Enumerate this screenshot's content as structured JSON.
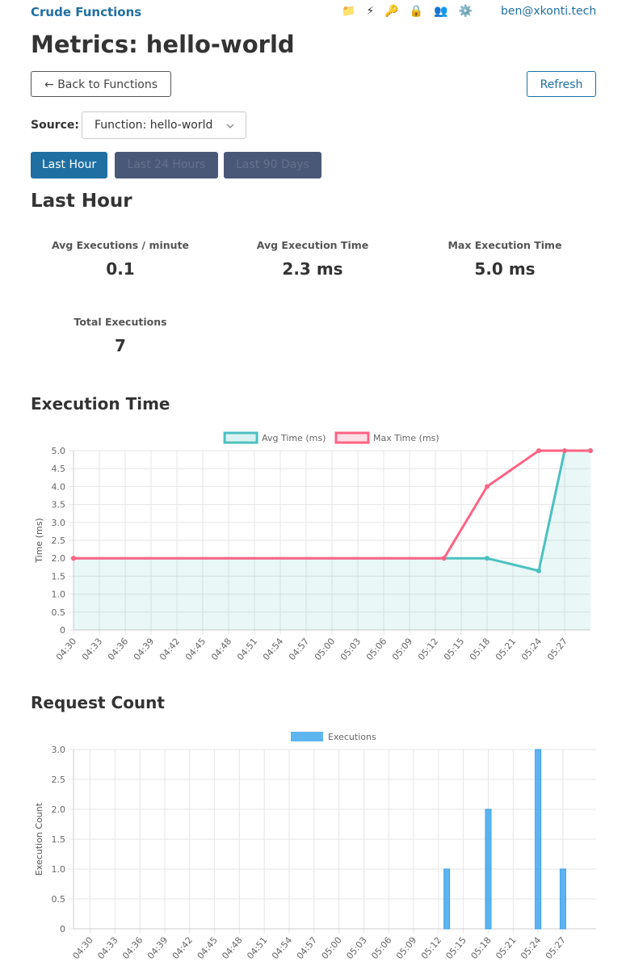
{
  "header": {
    "brand": "Crude Functions",
    "icons": [
      "📁",
      "⚡",
      "🔑",
      "🔒",
      "👥",
      "⚙️"
    ],
    "user": "ben@xkonti.tech"
  },
  "page": {
    "title": "Metrics: hello-world",
    "back_button": "← Back to Functions",
    "refresh_button": "Refresh",
    "source_label": "Source:",
    "source_value": "Function: hello-world",
    "tabs": [
      "Last Hour",
      "Last 24 Hours",
      "Last 90 Days"
    ],
    "section_title": "Last Hour"
  },
  "stats": [
    {
      "label": "Avg Executions / minute",
      "value": "0.1"
    },
    {
      "label": "Avg Execution Time",
      "value": "2.3 ms"
    },
    {
      "label": "Max Execution Time",
      "value": "5.0 ms"
    },
    {
      "label": "Total Executions",
      "value": "7"
    }
  ],
  "chart_data": [
    {
      "type": "line",
      "title": "Execution Time",
      "ylabel": "Time (ms)",
      "grid": true,
      "legend": "top",
      "x": [
        "04:30",
        "05:13",
        "05:18",
        "05:24",
        "05:27",
        "05:30"
      ],
      "series": [
        {
          "name": "Avg Time (ms)",
          "color": "#4bc0c0",
          "fill": true,
          "values": [
            2.0,
            2.0,
            2.0,
            1.65,
            5.0,
            5.0
          ]
        },
        {
          "name": "Max Time (ms)",
          "color": "#ff6384",
          "fill": false,
          "values": [
            2.0,
            2.0,
            4.0,
            5.0,
            5.0,
            5.0
          ]
        }
      ],
      "xlim": [
        "04:30",
        "05:30"
      ],
      "xticks": [
        "04:30",
        "04:33",
        "04:36",
        "04:39",
        "04:42",
        "04:45",
        "04:48",
        "04:51",
        "04:54",
        "04:57",
        "05:00",
        "05:03",
        "05:06",
        "05:09",
        "05:12",
        "05:15",
        "05:18",
        "05:21",
        "05:24",
        "05:27"
      ],
      "ylim": [
        0,
        5
      ],
      "yticks": [
        0,
        0.5,
        {
          "value": 1,
          "label": "1.0"
        },
        1.5,
        {
          "value": 2,
          "label": "2.0"
        },
        2.5,
        {
          "value": 3,
          "label": "3.0"
        },
        3.5,
        {
          "value": 4,
          "label": "4.0"
        },
        4.5,
        {
          "value": 5,
          "label": "5.0"
        }
      ]
    },
    {
      "type": "bar",
      "title": "Request Count",
      "ylabel": "Execution Count",
      "grid": true,
      "legend": "top",
      "x": [
        "05:13",
        "05:18",
        "05:24",
        "05:27"
      ],
      "series": [
        {
          "name": "Executions",
          "color": "#36a2eb",
          "values": [
            1,
            2,
            3,
            1
          ]
        }
      ],
      "xlim": [
        "04:28",
        "05:31"
      ],
      "xticks": [
        "04:30",
        "04:33",
        "04:36",
        "04:39",
        "04:42",
        "04:45",
        "04:48",
        "04:51",
        "04:54",
        "04:57",
        "05:00",
        "05:03",
        "05:06",
        "05:09",
        "05:12",
        "05:15",
        "05:18",
        "05:21",
        "05:24",
        "05:27"
      ],
      "ylim": [
        0,
        3
      ],
      "yticks": [
        0,
        0.5,
        {
          "value": 1,
          "label": "1.0"
        },
        1.5,
        {
          "value": 2,
          "label": "2.0"
        },
        2.5,
        {
          "value": 3,
          "label": "3.0"
        }
      ]
    }
  ]
}
